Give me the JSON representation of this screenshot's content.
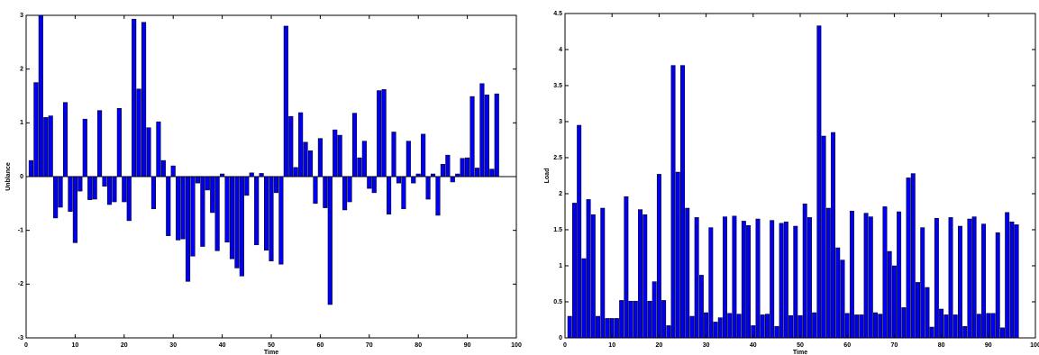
{
  "chart_data": [
    {
      "type": "bar",
      "y_label": "Unblance",
      "x_label": "Time",
      "color": "#0000ee",
      "x": [
        1,
        2,
        3,
        4,
        5,
        6,
        7,
        8,
        9,
        10,
        11,
        12,
        13,
        14,
        15,
        16,
        17,
        18,
        19,
        20,
        21,
        22,
        23,
        24,
        25,
        26,
        27,
        28,
        29,
        30,
        31,
        32,
        33,
        34,
        35,
        36,
        37,
        38,
        39,
        40,
        41,
        42,
        43,
        44,
        45,
        46,
        47,
        48,
        49,
        50,
        51,
        52,
        53,
        54,
        55,
        56,
        57,
        58,
        59,
        60,
        61,
        62,
        63,
        64,
        65,
        66,
        67,
        68,
        69,
        70,
        71,
        72,
        73,
        74,
        75,
        76,
        77,
        78,
        79,
        80,
        81,
        82,
        83,
        84,
        85,
        86,
        87,
        88,
        89,
        90,
        91,
        92,
        93,
        94,
        95,
        96
      ],
      "values": [
        0.3,
        1.75,
        3.0,
        1.1,
        1.13,
        -0.77,
        -0.57,
        1.38,
        -0.65,
        -1.23,
        -0.27,
        1.07,
        -0.43,
        -0.42,
        1.23,
        -0.18,
        -0.52,
        -0.47,
        1.27,
        -0.47,
        -0.82,
        2.93,
        1.63,
        2.87,
        0.91,
        -0.6,
        1.02,
        0.3,
        -1.1,
        0.2,
        -1.18,
        -1.16,
        -1.95,
        -1.48,
        -0.12,
        -1.3,
        -0.25,
        -0.67,
        -1.38,
        0.05,
        -1.22,
        -1.53,
        -1.7,
        -1.85,
        -0.35,
        0.07,
        -1.27,
        0.06,
        -1.37,
        -1.57,
        -0.3,
        -1.63,
        2.8,
        1.12,
        0.17,
        1.19,
        0.64,
        0.48,
        -0.5,
        0.71,
        -0.58,
        -2.38,
        0.87,
        0.77,
        -0.62,
        -0.47,
        1.18,
        0.35,
        0.66,
        -0.22,
        -0.3,
        1.6,
        1.62,
        -0.7,
        0.83,
        -0.12,
        -0.6,
        0.66,
        -0.12,
        0.05,
        0.79,
        -0.42,
        0.05,
        -0.72,
        0.23,
        0.4,
        -0.1,
        0.05,
        0.34,
        0.35,
        1.49,
        0.16,
        1.73,
        1.52,
        0.14,
        1.54
      ],
      "xlim": [
        0,
        100
      ],
      "xticks": [
        0,
        10,
        20,
        30,
        40,
        50,
        60,
        70,
        80,
        90,
        100
      ],
      "ylim": [
        -3,
        3
      ],
      "yticks": [
        -3,
        -2,
        -1,
        0,
        1,
        2,
        3
      ]
    },
    {
      "type": "bar",
      "y_label": "Load",
      "x_label": "Time",
      "color": "#0000ee",
      "x": [
        1,
        2,
        3,
        4,
        5,
        6,
        7,
        8,
        9,
        10,
        11,
        12,
        13,
        14,
        15,
        16,
        17,
        18,
        19,
        20,
        21,
        22,
        23,
        24,
        25,
        26,
        27,
        28,
        29,
        30,
        31,
        32,
        33,
        34,
        35,
        36,
        37,
        38,
        39,
        40,
        41,
        42,
        43,
        44,
        45,
        46,
        47,
        48,
        49,
        50,
        51,
        52,
        53,
        54,
        55,
        56,
        57,
        58,
        59,
        60,
        61,
        62,
        63,
        64,
        65,
        66,
        67,
        68,
        69,
        70,
        71,
        72,
        73,
        74,
        75,
        76,
        77,
        78,
        79,
        80,
        81,
        82,
        83,
        84,
        85,
        86,
        87,
        88,
        89,
        90,
        91,
        92,
        93,
        94,
        95,
        96
      ],
      "values": [
        0.3,
        1.87,
        2.95,
        1.1,
        1.92,
        1.71,
        0.3,
        1.8,
        0.27,
        0.27,
        0.27,
        0.52,
        1.96,
        0.51,
        0.51,
        1.78,
        1.71,
        0.51,
        0.78,
        2.27,
        0.52,
        0.17,
        3.78,
        2.3,
        3.78,
        1.8,
        0.3,
        1.67,
        0.87,
        0.35,
        1.53,
        0.22,
        0.28,
        1.68,
        0.34,
        1.69,
        0.33,
        1.62,
        1.56,
        0.17,
        1.65,
        0.32,
        0.33,
        1.63,
        0.16,
        1.59,
        1.61,
        0.31,
        1.55,
        0.31,
        1.86,
        1.67,
        0.35,
        4.33,
        2.8,
        1.8,
        2.85,
        1.25,
        1.08,
        0.34,
        1.76,
        0.32,
        0.32,
        1.73,
        1.68,
        0.35,
        0.33,
        1.82,
        1.2,
        1.0,
        1.75,
        0.42,
        2.22,
        2.28,
        0.77,
        1.53,
        0.7,
        0.15,
        1.66,
        0.4,
        0.32,
        1.67,
        0.32,
        1.55,
        0.16,
        1.65,
        1.68,
        0.33,
        1.58,
        0.34,
        0.34,
        1.46,
        0.14,
        1.74,
        1.61,
        1.57
      ],
      "xlim": [
        0,
        100
      ],
      "xticks": [
        0,
        10,
        20,
        30,
        40,
        50,
        60,
        70,
        80,
        90,
        100
      ],
      "ylim": [
        0,
        4.5
      ],
      "yticks": [
        0,
        0.5,
        1,
        1.5,
        2,
        2.5,
        3,
        3.5,
        4,
        4.5
      ]
    }
  ]
}
